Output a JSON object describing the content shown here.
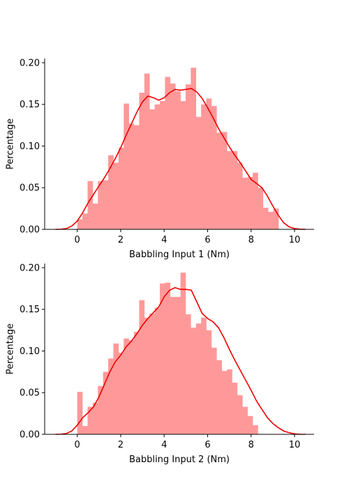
{
  "colors": {
    "bar": "#ff9999",
    "kde": "#ee0000",
    "axis": "#000000"
  },
  "chart_data": [
    {
      "type": "bar",
      "title": "",
      "xlabel": "Babbling Input 1 (Nm)",
      "ylabel": "Percentage",
      "xlim": [
        -1.5,
        10.9
      ],
      "ylim": [
        0,
        0.205
      ],
      "xticks": [
        {
          "v": 0,
          "label": "0"
        },
        {
          "v": 2,
          "label": "2"
        },
        {
          "v": 4,
          "label": "4"
        },
        {
          "v": 6,
          "label": "6"
        },
        {
          "v": 8,
          "label": "8"
        },
        {
          "v": 10,
          "label": "10"
        }
      ],
      "yticks": [
        {
          "v": 0,
          "label": "0.00"
        },
        {
          "v": 0.05,
          "label": "0.05"
        },
        {
          "v": 0.1,
          "label": "0.10"
        },
        {
          "v": 0.15,
          "label": "0.15"
        },
        {
          "v": 0.2,
          "label": "0.20"
        }
      ],
      "bin_start": 0.0,
      "bin_width": 0.2375,
      "histogram": [
        0.012,
        0.019,
        0.058,
        0.031,
        0.058,
        0.059,
        0.089,
        0.08,
        0.098,
        0.151,
        0.127,
        0.125,
        0.164,
        0.187,
        0.144,
        0.15,
        0.154,
        0.183,
        0.175,
        0.166,
        0.154,
        0.174,
        0.194,
        0.135,
        0.15,
        0.157,
        0.148,
        0.116,
        0.117,
        0.094,
        0.094,
        0.08,
        0.062,
        0.063,
        0.068,
        0.05,
        0.026,
        0.021,
        0.025
      ],
      "kde_x": [
        -1.0,
        -0.75,
        -0.5,
        -0.25,
        0,
        0.25,
        0.5,
        0.75,
        1,
        1.25,
        1.5,
        1.75,
        2,
        2.25,
        2.5,
        2.75,
        3,
        3.25,
        3.5,
        3.75,
        4,
        4.25,
        4.5,
        4.75,
        5,
        5.25,
        5.5,
        5.75,
        6,
        6.25,
        6.5,
        6.75,
        7,
        7.25,
        7.5,
        7.75,
        8,
        8.25,
        8.5,
        8.75,
        9,
        9.25,
        9.5,
        9.75,
        10,
        10.25,
        10.5
      ],
      "kde_y": [
        0.0,
        0.0002,
        0.001,
        0.004,
        0.01,
        0.02,
        0.032,
        0.042,
        0.052,
        0.062,
        0.073,
        0.085,
        0.098,
        0.113,
        0.127,
        0.141,
        0.153,
        0.16,
        0.158,
        0.155,
        0.158,
        0.164,
        0.168,
        0.167,
        0.168,
        0.169,
        0.165,
        0.157,
        0.146,
        0.134,
        0.121,
        0.11,
        0.099,
        0.089,
        0.08,
        0.07,
        0.06,
        0.055,
        0.05,
        0.04,
        0.028,
        0.017,
        0.008,
        0.003,
        0.001,
        0.0003,
        0.0
      ]
    },
    {
      "type": "bar",
      "title": "",
      "xlabel": "Babbling Input 2 (Nm)",
      "ylabel": "Percentage",
      "xlim": [
        -1.5,
        10.9
      ],
      "ylim": [
        0,
        0.205
      ],
      "xticks": [
        {
          "v": 0,
          "label": "0"
        },
        {
          "v": 2,
          "label": "2"
        },
        {
          "v": 4,
          "label": "4"
        },
        {
          "v": 6,
          "label": "6"
        },
        {
          "v": 8,
          "label": "8"
        },
        {
          "v": 10,
          "label": "10"
        }
      ],
      "yticks": [
        {
          "v": 0,
          "label": "0.00"
        },
        {
          "v": 0.05,
          "label": "0.05"
        },
        {
          "v": 0.1,
          "label": "0.10"
        },
        {
          "v": 0.15,
          "label": "0.15"
        },
        {
          "v": 0.2,
          "label": "0.20"
        }
      ],
      "bin_start": 0.0,
      "bin_width": 0.2375,
      "histogram": [
        0.051,
        0.01,
        0.033,
        0.038,
        0.058,
        0.075,
        0.091,
        0.109,
        0.098,
        0.115,
        0.113,
        0.123,
        0.161,
        0.14,
        0.145,
        0.152,
        0.181,
        0.182,
        0.165,
        0.165,
        0.194,
        0.144,
        0.128,
        0.133,
        0.14,
        0.125,
        0.104,
        0.089,
        0.076,
        0.078,
        0.062,
        0.047,
        0.033,
        0.022,
        0.011
      ],
      "kde_x": [
        -1.0,
        -0.75,
        -0.5,
        -0.25,
        0,
        0.25,
        0.5,
        0.75,
        1,
        1.25,
        1.5,
        1.75,
        2,
        2.25,
        2.5,
        2.75,
        3,
        3.25,
        3.5,
        3.75,
        4,
        4.25,
        4.5,
        4.75,
        5,
        5.25,
        5.5,
        5.75,
        6,
        6.25,
        6.5,
        6.75,
        7,
        7.25,
        7.5,
        7.75,
        8,
        8.25,
        8.5,
        8.75,
        9,
        9.25,
        9.5,
        9.75,
        10,
        10.25,
        10.5
      ],
      "kde_y": [
        0.0,
        0.0002,
        0.001,
        0.004,
        0.011,
        0.02,
        0.026,
        0.033,
        0.045,
        0.06,
        0.075,
        0.087,
        0.095,
        0.105,
        0.112,
        0.121,
        0.131,
        0.139,
        0.146,
        0.153,
        0.165,
        0.173,
        0.176,
        0.174,
        0.174,
        0.173,
        0.159,
        0.145,
        0.139,
        0.135,
        0.128,
        0.116,
        0.102,
        0.089,
        0.077,
        0.065,
        0.053,
        0.04,
        0.03,
        0.02,
        0.013,
        0.008,
        0.004,
        0.002,
        0.0006,
        0.0001,
        0.0
      ]
    }
  ]
}
